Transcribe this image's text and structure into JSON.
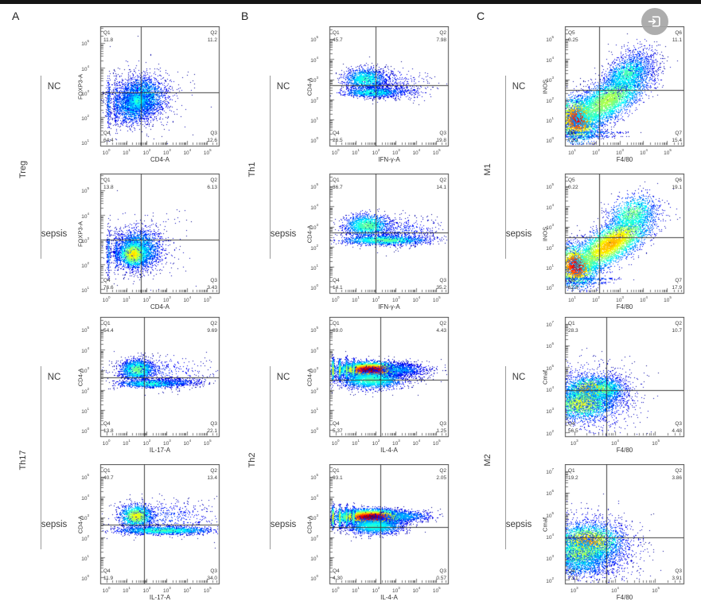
{
  "top_bar": {
    "color": "#151515"
  },
  "overlay_button": {
    "icon": "open-in-viewer",
    "bg_color": "#a7a7a7"
  },
  "figure": {
    "panel_letters": [
      "A",
      "B",
      "C"
    ]
  },
  "cluster_format": [
    "cx_log",
    "cy_log",
    "sx_log",
    "sy_log",
    "rot_deg",
    "n_points",
    "core_intensity"
  ],
  "chart_data": [
    {
      "id": "treg-nc",
      "type": "scatter",
      "panel": "A",
      "group": "Treg",
      "condition": "NC",
      "xlabel": "CD4-A",
      "ylabel": "FOXP3-A",
      "x_ticks_exp": [
        0,
        1,
        2,
        3,
        4,
        5
      ],
      "y_ticks_exp": [
        1,
        2,
        3,
        4,
        5
      ],
      "x_range": [
        -0.3,
        5.6
      ],
      "y_range": [
        0.85,
        5.65
      ],
      "gate_x": 1.71,
      "gate_y": 3.01,
      "quadrants": [
        {
          "label": "Q1",
          "value": "11.8",
          "corner": "top-left"
        },
        {
          "label": "Q2",
          "value": "11.2",
          "corner": "top-right"
        },
        {
          "label": "Q3",
          "value": "12.6",
          "corner": "bottom-right"
        },
        {
          "label": "Q4",
          "value": "64.4",
          "corner": "bottom-left"
        }
      ],
      "clusters": [
        [
          1.75,
          2.8,
          0.6,
          0.42,
          0,
          2400,
          0.38
        ],
        [
          1.3,
          2.45,
          0.5,
          0.38,
          0,
          1400,
          0.34
        ],
        [
          1.55,
          2.65,
          0.28,
          0.22,
          0,
          900,
          0.42
        ],
        [
          0.12,
          2.6,
          0.05,
          0.55,
          0,
          200,
          0.26
        ],
        [
          0.5,
          2.6,
          0.05,
          0.5,
          0,
          160,
          0.26
        ],
        [
          1.9,
          2.8,
          1.15,
          0.75,
          0,
          300,
          0.15
        ]
      ]
    },
    {
      "id": "treg-sepsis",
      "type": "scatter",
      "panel": "A",
      "group": "Treg",
      "condition": "sepsis",
      "xlabel": "CD4-A",
      "ylabel": "FOXP3-A",
      "x_ticks_exp": [
        0,
        1,
        2,
        3,
        4,
        5
      ],
      "y_ticks_exp": [
        1,
        2,
        3,
        4,
        5
      ],
      "x_range": [
        -0.3,
        5.6
      ],
      "y_range": [
        0.85,
        5.65
      ],
      "gate_x": 1.71,
      "gate_y": 3.01,
      "quadrants": [
        {
          "label": "Q1",
          "value": "13.8",
          "corner": "top-left"
        },
        {
          "label": "Q2",
          "value": "6.13",
          "corner": "top-right"
        },
        {
          "label": "Q3",
          "value": "3.43",
          "corner": "bottom-right"
        },
        {
          "label": "Q4",
          "value": "76.6",
          "corner": "bottom-left"
        }
      ],
      "clusters": [
        [
          1.6,
          2.62,
          0.55,
          0.4,
          0,
          2400,
          0.4
        ],
        [
          1.35,
          2.42,
          0.36,
          0.26,
          0,
          1700,
          0.66
        ],
        [
          0.12,
          2.5,
          0.05,
          0.5,
          0,
          200,
          0.26
        ],
        [
          0.5,
          2.5,
          0.05,
          0.45,
          0,
          150,
          0.26
        ],
        [
          1.8,
          2.7,
          1.05,
          0.7,
          0,
          280,
          0.15
        ]
      ]
    },
    {
      "id": "th17-nc",
      "type": "scatter",
      "panel": "A",
      "group": "Th17",
      "condition": "NC",
      "xlabel": "IL-17-A",
      "ylabel": "CD4-A",
      "x_ticks_exp": [
        0,
        1,
        2,
        3,
        4,
        5
      ],
      "y_ticks_exp": [
        0,
        1,
        2,
        3,
        4,
        5
      ],
      "x_range": [
        -0.3,
        5.6
      ],
      "y_range": [
        -0.3,
        5.6
      ],
      "gate_x": 1.88,
      "gate_y": 2.65,
      "quadrants": [
        {
          "label": "Q1",
          "value": "54.4",
          "corner": "top-left"
        },
        {
          "label": "Q2",
          "value": "9.69",
          "corner": "top-right"
        },
        {
          "label": "Q3",
          "value": "22.1",
          "corner": "bottom-right"
        },
        {
          "label": "Q4",
          "value": "13.8",
          "corner": "bottom-left"
        }
      ],
      "clusters": [
        [
          1.55,
          3.0,
          0.4,
          0.24,
          0,
          2000,
          0.5
        ],
        [
          2.3,
          2.32,
          0.85,
          0.1,
          0,
          1200,
          0.42
        ],
        [
          2.6,
          2.9,
          1.3,
          0.42,
          0,
          420,
          0.16
        ],
        [
          3.6,
          2.4,
          0.75,
          0.12,
          0,
          260,
          0.2
        ]
      ]
    },
    {
      "id": "th17-sepsis",
      "type": "scatter",
      "panel": "A",
      "group": "Th17",
      "condition": "sepsis",
      "xlabel": "IL-17-A",
      "ylabel": "CD4-A",
      "x_ticks_exp": [
        0,
        1,
        2,
        3,
        4,
        5
      ],
      "y_ticks_exp": [
        0,
        1,
        2,
        3,
        4,
        5
      ],
      "x_range": [
        -0.3,
        5.6
      ],
      "y_range": [
        -0.3,
        5.6
      ],
      "gate_x": 1.88,
      "gate_y": 2.65,
      "quadrants": [
        {
          "label": "Q1",
          "value": "40.7",
          "corner": "top-left"
        },
        {
          "label": "Q2",
          "value": "13.4",
          "corner": "top-right"
        },
        {
          "label": "Q3",
          "value": "34.0",
          "corner": "bottom-right"
        },
        {
          "label": "Q4",
          "value": "11.9",
          "corner": "bottom-left"
        }
      ],
      "clusters": [
        [
          1.5,
          3.05,
          0.38,
          0.26,
          0,
          1800,
          0.62
        ],
        [
          2.9,
          2.34,
          1.15,
          0.1,
          0,
          1800,
          0.45
        ],
        [
          2.9,
          3.0,
          1.35,
          0.42,
          0,
          600,
          0.18
        ]
      ]
    },
    {
      "id": "th1-nc",
      "type": "scatter",
      "panel": "B",
      "group": "Th1",
      "condition": "NC",
      "xlabel": "IFN-γ-A",
      "ylabel": "CD4-A",
      "x_ticks_exp": [
        0,
        1,
        2,
        3,
        4,
        5
      ],
      "y_ticks_exp": [
        0,
        1,
        2,
        3,
        4,
        5
      ],
      "x_range": [
        -0.3,
        5.6
      ],
      "y_range": [
        -0.3,
        5.6
      ],
      "gate_x": 2.0,
      "gate_y": 2.71,
      "quadrants": [
        {
          "label": "Q1",
          "value": "45.7",
          "corner": "top-left"
        },
        {
          "label": "Q2",
          "value": "7.98",
          "corner": "top-right"
        },
        {
          "label": "Q3",
          "value": "19.8",
          "corner": "bottom-right"
        },
        {
          "label": "Q4",
          "value": "26.5",
          "corner": "bottom-left"
        }
      ],
      "clusters": [
        [
          1.5,
          3.0,
          0.52,
          0.27,
          0,
          1500,
          0.42
        ],
        [
          1.9,
          2.35,
          0.72,
          0.12,
          0,
          1200,
          0.42
        ],
        [
          3.0,
          2.4,
          0.9,
          0.22,
          0,
          320,
          0.18
        ],
        [
          2.7,
          3.0,
          1.0,
          0.3,
          0,
          260,
          0.15
        ]
      ]
    },
    {
      "id": "th1-sepsis",
      "type": "scatter",
      "panel": "B",
      "group": "Th1",
      "condition": "sepsis",
      "xlabel": "IFN-γ-A",
      "ylabel": "CD4-A",
      "x_ticks_exp": [
        0,
        1,
        2,
        3,
        4,
        5
      ],
      "y_ticks_exp": [
        0,
        1,
        2,
        3,
        4,
        5
      ],
      "x_range": [
        -0.3,
        5.6
      ],
      "y_range": [
        -0.3,
        5.6
      ],
      "gate_x": 2.0,
      "gate_y": 2.71,
      "quadrants": [
        {
          "label": "Q1",
          "value": "36.7",
          "corner": "top-left"
        },
        {
          "label": "Q2",
          "value": "14.1",
          "corner": "top-right"
        },
        {
          "label": "Q3",
          "value": "35.2",
          "corner": "bottom-right"
        },
        {
          "label": "Q4",
          "value": "14.1",
          "corner": "bottom-left"
        }
      ],
      "clusters": [
        [
          1.6,
          3.05,
          0.55,
          0.27,
          0,
          1700,
          0.48
        ],
        [
          2.5,
          2.33,
          1.05,
          0.12,
          0,
          1700,
          0.48
        ],
        [
          3.4,
          2.75,
          0.95,
          0.38,
          0,
          480,
          0.17
        ]
      ]
    },
    {
      "id": "th2-nc",
      "type": "scatter",
      "panel": "B",
      "group": "Th2",
      "condition": "NC",
      "xlabel": "IL-4-A",
      "ylabel": "CD4-A",
      "x_ticks_exp": [
        0,
        1,
        2,
        3,
        4,
        5
      ],
      "y_ticks_exp": [
        0,
        1,
        2,
        3,
        4,
        5
      ],
      "x_range": [
        -0.3,
        5.6
      ],
      "y_range": [
        -0.3,
        5.6
      ],
      "gate_x": 2.24,
      "gate_y": 2.53,
      "quadrants": [
        {
          "label": "Q1",
          "value": "89.0",
          "corner": "top-left"
        },
        {
          "label": "Q2",
          "value": "4.43",
          "corner": "top-right"
        },
        {
          "label": "Q3",
          "value": "1.25",
          "corner": "bottom-right"
        },
        {
          "label": "Q4",
          "value": "5.37",
          "corner": "bottom-left"
        }
      ],
      "clusters": [
        [
          1.75,
          3.0,
          0.72,
          0.17,
          0,
          7000,
          0.98
        ],
        [
          1.8,
          2.5,
          0.78,
          0.22,
          0,
          2400,
          0.45
        ],
        [
          3.2,
          3.0,
          0.62,
          0.15,
          0,
          800,
          0.3
        ],
        [
          3.7,
          2.95,
          0.8,
          0.3,
          0,
          260,
          0.15
        ],
        [
          -0.12,
          3.0,
          0.03,
          0.24,
          0,
          500,
          0.72
        ],
        [
          0.22,
          3.0,
          0.03,
          0.24,
          0,
          430,
          0.66
        ],
        [
          0.56,
          3.0,
          0.03,
          0.24,
          0,
          380,
          0.6
        ],
        [
          0.9,
          3.0,
          0.035,
          0.24,
          0,
          350,
          0.55
        ]
      ]
    },
    {
      "id": "th2-sepsis",
      "type": "scatter",
      "panel": "B",
      "group": "Th2",
      "condition": "sepsis",
      "xlabel": "IL-4-A",
      "ylabel": "CD4-A",
      "x_ticks_exp": [
        0,
        1,
        2,
        3,
        4,
        5
      ],
      "y_ticks_exp": [
        0,
        1,
        2,
        3,
        4,
        5
      ],
      "x_range": [
        -0.3,
        5.6
      ],
      "y_range": [
        -0.3,
        5.6
      ],
      "gate_x": 2.24,
      "gate_y": 2.53,
      "quadrants": [
        {
          "label": "Q1",
          "value": "93.1",
          "corner": "top-left"
        },
        {
          "label": "Q2",
          "value": "2.05",
          "corner": "top-right"
        },
        {
          "label": "Q3",
          "value": "0.57",
          "corner": "bottom-right"
        },
        {
          "label": "Q4",
          "value": "4.30",
          "corner": "bottom-left"
        }
      ],
      "clusters": [
        [
          1.8,
          3.0,
          0.78,
          0.17,
          0,
          8000,
          0.99
        ],
        [
          1.95,
          2.55,
          0.7,
          0.2,
          0,
          2000,
          0.42
        ],
        [
          3.4,
          3.05,
          0.72,
          0.15,
          0,
          750,
          0.3
        ],
        [
          -0.12,
          3.0,
          0.03,
          0.24,
          0,
          520,
          0.72
        ],
        [
          0.22,
          3.0,
          0.03,
          0.24,
          0,
          450,
          0.66
        ],
        [
          0.56,
          3.0,
          0.03,
          0.24,
          0,
          400,
          0.6
        ],
        [
          0.9,
          3.0,
          0.035,
          0.24,
          0,
          360,
          0.55
        ]
      ]
    },
    {
      "id": "m1-nc",
      "type": "scatter",
      "panel": "C",
      "group": "M1",
      "condition": "NC",
      "xlabel": "F4/80",
      "ylabel": "INOS",
      "x_ticks_exp": [
        1,
        2,
        3,
        4,
        5
      ],
      "y_ticks_exp": [
        0,
        1,
        2,
        3,
        4,
        5
      ],
      "x_range": [
        0.7,
        5.7
      ],
      "y_range": [
        -0.3,
        5.6
      ],
      "gate_x": 2.15,
      "gate_y": 2.47,
      "quadrants": [
        {
          "label": "Q5",
          "value": "0.25",
          "corner": "top-left"
        },
        {
          "label": "Q6",
          "value": "11.1",
          "corner": "top-right"
        },
        {
          "label": "Q7",
          "value": "15.4",
          "corner": "bottom-right"
        },
        {
          "label": "Q8",
          "value": "73.3",
          "corner": "bottom-left"
        }
      ],
      "clusters": [
        [
          1.25,
          1.0,
          0.42,
          0.52,
          0,
          3200,
          0.88
        ],
        [
          2.5,
          1.95,
          1.05,
          0.42,
          40,
          4800,
          0.55
        ],
        [
          3.35,
          3.3,
          0.55,
          0.35,
          38,
          1300,
          0.45
        ],
        [
          3.8,
          4.0,
          0.5,
          0.45,
          30,
          260,
          0.2
        ],
        [
          1.6,
          0.35,
          0.8,
          0.03,
          0,
          220,
          0.3
        ],
        [
          1.5,
          0.15,
          0.7,
          0.03,
          0,
          160,
          0.28
        ]
      ]
    },
    {
      "id": "m1-sepsis",
      "type": "scatter",
      "panel": "C",
      "group": "M1",
      "condition": "sepsis",
      "xlabel": "F4/80",
      "ylabel": "INOS",
      "x_ticks_exp": [
        1,
        2,
        3,
        4,
        5
      ],
      "y_ticks_exp": [
        0,
        1,
        2,
        3,
        4,
        5
      ],
      "x_range": [
        0.7,
        5.7
      ],
      "y_range": [
        -0.3,
        5.6
      ],
      "gate_x": 2.15,
      "gate_y": 2.47,
      "quadrants": [
        {
          "label": "Q5",
          "value": "0.22",
          "corner": "top-left"
        },
        {
          "label": "Q6",
          "value": "19.1",
          "corner": "top-right"
        },
        {
          "label": "Q7",
          "value": "17.9",
          "corner": "bottom-right"
        },
        {
          "label": "Q8",
          "value": "62.8",
          "corner": "bottom-left"
        }
      ],
      "clusters": [
        [
          1.2,
          1.05,
          0.4,
          0.48,
          0,
          2800,
          0.92
        ],
        [
          2.65,
          2.15,
          1.05,
          0.4,
          40,
          5200,
          0.7
        ],
        [
          3.55,
          3.65,
          0.55,
          0.4,
          38,
          1100,
          0.5
        ],
        [
          1.5,
          0.4,
          0.75,
          0.03,
          0,
          220,
          0.3
        ],
        [
          1.4,
          0.2,
          0.65,
          0.03,
          0,
          170,
          0.28
        ]
      ]
    },
    {
      "id": "m2-nc",
      "type": "scatter",
      "panel": "C",
      "group": "M2",
      "condition": "NC",
      "xlabel": "F4/80",
      "ylabel": "Cmaf",
      "x_ticks_exp": [
        3,
        4,
        5
      ],
      "y_ticks_exp": [
        2,
        3,
        4,
        5,
        6,
        7
      ],
      "x_range": [
        2.77,
        5.7
      ],
      "y_range": [
        1.8,
        7.3
      ],
      "gate_x": 3.79,
      "gate_y": 3.93,
      "quadrants": [
        {
          "label": "Q1",
          "value": "28.3",
          "corner": "top-left"
        },
        {
          "label": "Q2",
          "value": "10.7",
          "corner": "top-right"
        },
        {
          "label": "Q3",
          "value": "4.48",
          "corner": "bottom-right"
        },
        {
          "label": "Q4",
          "value": "56.5",
          "corner": "bottom-left"
        }
      ],
      "clusters": [
        [
          3.45,
          3.95,
          0.33,
          0.3,
          20,
          2400,
          0.72
        ],
        [
          3.2,
          3.3,
          0.38,
          0.35,
          20,
          2400,
          0.62
        ],
        [
          3.35,
          3.6,
          0.6,
          0.75,
          0,
          1600,
          0.26
        ],
        [
          3.75,
          3.95,
          0.28,
          0.28,
          0,
          700,
          0.45
        ]
      ]
    },
    {
      "id": "m2-sepsis",
      "type": "scatter",
      "panel": "C",
      "group": "M2",
      "condition": "sepsis",
      "xlabel": "F4/80",
      "ylabel": "Cmaf",
      "x_ticks_exp": [
        3,
        4,
        5
      ],
      "y_ticks_exp": [
        2,
        3,
        4,
        5,
        6,
        7
      ],
      "x_range": [
        2.77,
        5.7
      ],
      "y_range": [
        1.8,
        7.3
      ],
      "gate_x": 3.79,
      "gate_y": 3.93,
      "quadrants": [
        {
          "label": "Q1",
          "value": "19.2",
          "corner": "top-left"
        },
        {
          "label": "Q2",
          "value": "3.86",
          "corner": "top-right"
        },
        {
          "label": "Q3",
          "value": "3.91",
          "corner": "bottom-right"
        },
        {
          "label": "Q4",
          "value": "73.1",
          "corner": "bottom-left"
        }
      ],
      "clusters": [
        [
          3.35,
          3.7,
          0.4,
          0.42,
          15,
          3400,
          0.72
        ],
        [
          3.15,
          3.15,
          0.4,
          0.35,
          15,
          2000,
          0.55
        ],
        [
          3.3,
          3.45,
          0.65,
          0.8,
          0,
          1600,
          0.26
        ],
        [
          3.15,
          2.6,
          0.38,
          0.28,
          0,
          500,
          0.32
        ]
      ]
    }
  ]
}
